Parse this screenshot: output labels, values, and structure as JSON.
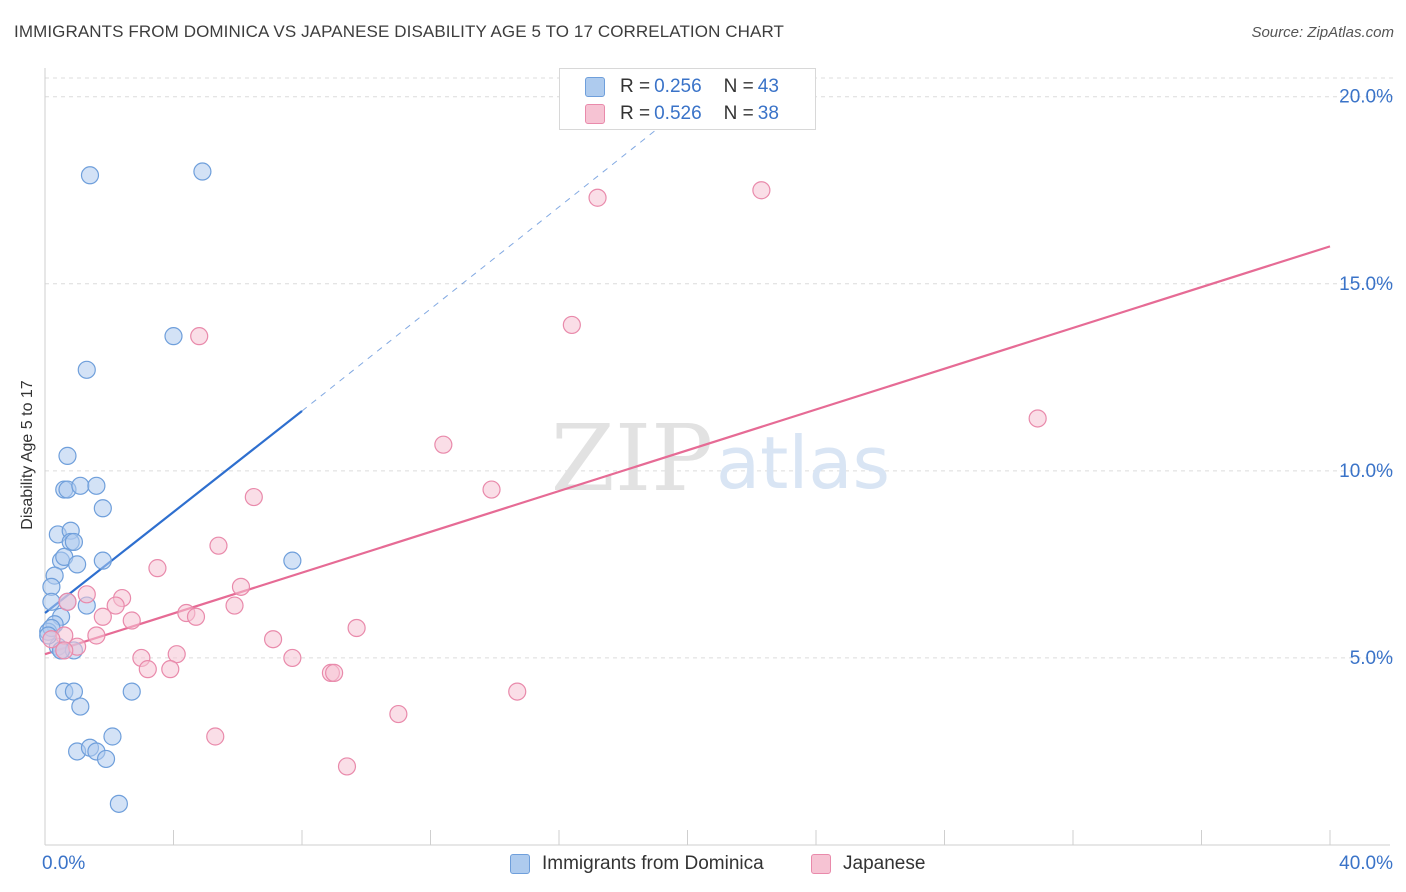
{
  "title": "IMMIGRANTS FROM DOMINICA VS JAPANESE DISABILITY AGE 5 TO 17 CORRELATION CHART",
  "source": "Source: ZipAtlas.com",
  "watermark": {
    "zip": "ZIP",
    "atlas": "atlas"
  },
  "legend": {
    "r_label": "R = ",
    "n_label": "N = ",
    "rows": [
      {
        "r": "0.256",
        "n": "43"
      },
      {
        "r": "0.526",
        "n": "38"
      }
    ]
  },
  "colors": {
    "blue_fill": "#aecbee",
    "blue_stroke": "#6f9fdb",
    "blue_line": "#2e6fcf",
    "pink_fill": "#f6c3d3",
    "pink_stroke": "#e98aab",
    "pink_line": "#e66b95",
    "tick_label": "#3a73c8",
    "grid": "#dcdcdc"
  },
  "chart_data": {
    "type": "scatter",
    "title": "IMMIGRANTS FROM DOMINICA VS JAPANESE DISABILITY AGE 5 TO 17 CORRELATION CHART",
    "xlabel": "",
    "ylabel": "Disability Age 5 to 17",
    "xlim": [
      0,
      40
    ],
    "ylim": [
      0,
      20.5
    ],
    "x_tick_labels": [
      "0.0%",
      "40.0%"
    ],
    "y_ticks": [
      5,
      10,
      15,
      20
    ],
    "y_tick_labels": [
      "5.0%",
      "10.0%",
      "15.0%",
      "20.0%"
    ],
    "series": [
      {
        "name": "Immigrants from Dominica",
        "color": "blue",
        "r": 0.256,
        "n": 43,
        "trend": {
          "x": [
            0.0,
            8.0
          ],
          "y": [
            6.2,
            11.6
          ]
        },
        "trend_extension": {
          "x": [
            8.0,
            19.0
          ],
          "y": [
            11.6,
            19.1
          ]
        },
        "points": [
          [
            1.4,
            17.9
          ],
          [
            4.9,
            18.0
          ],
          [
            4.0,
            13.6
          ],
          [
            1.3,
            12.7
          ],
          [
            0.7,
            10.4
          ],
          [
            0.6,
            9.5
          ],
          [
            0.7,
            9.5
          ],
          [
            1.1,
            9.6
          ],
          [
            1.6,
            9.6
          ],
          [
            1.8,
            9.0
          ],
          [
            0.4,
            8.3
          ],
          [
            0.8,
            8.4
          ],
          [
            0.8,
            8.1
          ],
          [
            0.9,
            8.1
          ],
          [
            0.5,
            7.6
          ],
          [
            0.6,
            7.7
          ],
          [
            1.0,
            7.5
          ],
          [
            1.8,
            7.6
          ],
          [
            7.7,
            7.6
          ],
          [
            0.3,
            7.2
          ],
          [
            0.2,
            6.9
          ],
          [
            0.2,
            6.5
          ],
          [
            0.7,
            6.5
          ],
          [
            1.3,
            6.4
          ],
          [
            0.5,
            6.1
          ],
          [
            0.3,
            5.9
          ],
          [
            0.1,
            5.7
          ],
          [
            0.2,
            5.8
          ],
          [
            0.4,
            5.3
          ],
          [
            0.5,
            5.2
          ],
          [
            0.9,
            5.2
          ],
          [
            0.5,
            5.2
          ],
          [
            0.6,
            4.1
          ],
          [
            0.9,
            4.1
          ],
          [
            2.7,
            4.1
          ],
          [
            1.1,
            3.7
          ],
          [
            2.1,
            2.9
          ],
          [
            1.0,
            2.5
          ],
          [
            1.4,
            2.6
          ],
          [
            1.6,
            2.5
          ],
          [
            1.9,
            2.3
          ],
          [
            2.3,
            1.1
          ],
          [
            0.1,
            5.6
          ]
        ]
      },
      {
        "name": "Japanese",
        "color": "pink",
        "r": 0.526,
        "n": 38,
        "trend": {
          "x": [
            0.0,
            40.0
          ],
          "y": [
            5.1,
            16.0
          ]
        },
        "points": [
          [
            17.2,
            17.3
          ],
          [
            22.3,
            17.5
          ],
          [
            4.8,
            13.6
          ],
          [
            16.4,
            13.9
          ],
          [
            30.9,
            11.4
          ],
          [
            12.4,
            10.7
          ],
          [
            13.9,
            9.5
          ],
          [
            6.5,
            9.3
          ],
          [
            5.4,
            8.0
          ],
          [
            3.5,
            7.4
          ],
          [
            6.1,
            6.9
          ],
          [
            1.3,
            6.7
          ],
          [
            2.4,
            6.6
          ],
          [
            0.7,
            6.5
          ],
          [
            2.2,
            6.4
          ],
          [
            5.9,
            6.4
          ],
          [
            4.4,
            6.2
          ],
          [
            1.8,
            6.1
          ],
          [
            4.7,
            6.1
          ],
          [
            2.7,
            6.0
          ],
          [
            9.7,
            5.8
          ],
          [
            1.6,
            5.6
          ],
          [
            7.1,
            5.5
          ],
          [
            0.6,
            5.6
          ],
          [
            0.2,
            5.5
          ],
          [
            1.0,
            5.3
          ],
          [
            0.6,
            5.2
          ],
          [
            4.1,
            5.1
          ],
          [
            3.0,
            5.0
          ],
          [
            7.7,
            5.0
          ],
          [
            3.2,
            4.7
          ],
          [
            3.9,
            4.7
          ],
          [
            8.9,
            4.6
          ],
          [
            9.0,
            4.6
          ],
          [
            14.7,
            4.1
          ],
          [
            11.0,
            3.5
          ],
          [
            5.3,
            2.9
          ],
          [
            9.4,
            2.1
          ]
        ]
      }
    ]
  },
  "bottom_legend": [
    {
      "label": "Immigrants from Dominica"
    },
    {
      "label": "Japanese"
    }
  ]
}
